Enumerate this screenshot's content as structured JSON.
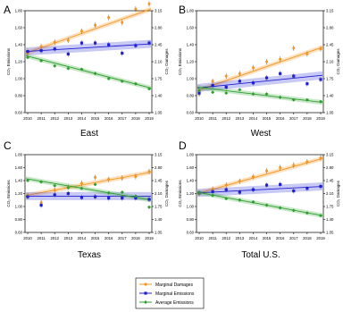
{
  "chart_data": {
    "type": "scatter",
    "years": [
      2010,
      2011,
      2012,
      2013,
      2014,
      2015,
      2016,
      2017,
      2018,
      2019
    ],
    "axes": {
      "left_label": "CO₂ Emissions",
      "right_label": "CO₂ Damages",
      "left_ylim": [
        0.6,
        1.8
      ],
      "left_ticks": [
        "0.60",
        "0.80",
        "1.00",
        "1.20",
        "1.40",
        "1.60",
        "1.80"
      ],
      "right_ylim": [
        0.6,
        3.6
      ],
      "right_ticks": [
        "1.05",
        "1.40",
        "1.75",
        "2.10",
        "2.45",
        "2.80",
        "3.15"
      ]
    },
    "legend": {
      "placement": "bottom-center",
      "entries": [
        {
          "name": "Marginal Damages",
          "color": "#f7941d"
        },
        {
          "name": "Marginal Emissions",
          "color": "#1f1fd6"
        },
        {
          "name": "Average Emissions",
          "color": "#2ca02c"
        }
      ]
    },
    "panels": [
      {
        "letter": "A",
        "title": "East",
        "series": {
          "marginal_damages": [
            1.3,
            1.38,
            1.43,
            1.45,
            1.56,
            1.63,
            1.72,
            1.66,
            1.82,
            1.88
          ],
          "marginal_emissions": [
            1.32,
            1.33,
            1.35,
            1.29,
            1.42,
            1.42,
            1.4,
            1.3,
            1.39,
            1.42
          ],
          "average_emissions": [
            1.25,
            1.21,
            1.15,
            1.12,
            1.11,
            1.06,
            1.0,
            0.97,
            0.94,
            0.88
          ]
        },
        "fits": {
          "marginal_damages": [
            1.3,
            1.82
          ],
          "marginal_emissions": [
            1.32,
            1.41
          ],
          "average_emissions": [
            1.27,
            0.89
          ]
        }
      },
      {
        "letter": "B",
        "title": "West",
        "series": {
          "marginal_damages": [
            0.82,
            0.97,
            1.03,
            1.06,
            1.13,
            1.2,
            1.23,
            1.36,
            1.29,
            1.35
          ],
          "marginal_emissions": [
            0.83,
            0.92,
            0.9,
            0.97,
            0.95,
            1.01,
            1.06,
            1.03,
            0.94,
            0.99
          ],
          "average_emissions": [
            0.86,
            0.84,
            0.83,
            0.87,
            0.82,
            0.82,
            0.78,
            0.75,
            0.75,
            0.73
          ]
        },
        "fits": {
          "marginal_damages": [
            0.86,
            1.37
          ],
          "marginal_emissions": [
            0.89,
            1.04
          ],
          "average_emissions": [
            0.9,
            0.72
          ]
        }
      },
      {
        "letter": "C",
        "title": "Texas",
        "series": {
          "marginal_damages": [
            1.17,
            1.06,
            1.25,
            1.3,
            1.36,
            1.45,
            1.42,
            1.44,
            1.46,
            1.54
          ],
          "marginal_emissions": [
            1.15,
            1.02,
            1.18,
            1.2,
            1.14,
            1.15,
            1.13,
            1.13,
            1.13,
            1.11
          ],
          "average_emissions": [
            1.4,
            1.38,
            1.32,
            1.29,
            1.28,
            1.34,
            1.21,
            1.22,
            1.16,
            0.99
          ]
        },
        "fits": {
          "marginal_damages": [
            1.17,
            1.53
          ],
          "marginal_emissions": [
            1.16,
            1.16
          ],
          "average_emissions": [
            1.43,
            1.1
          ]
        }
      },
      {
        "letter": "D",
        "title": "Total U.S.",
        "series": {
          "marginal_damages": [
            1.2,
            1.27,
            1.33,
            1.39,
            1.46,
            1.55,
            1.6,
            1.64,
            1.69,
            1.75
          ],
          "marginal_emissions": [
            1.21,
            1.23,
            1.26,
            1.22,
            1.26,
            1.33,
            1.34,
            1.24,
            1.28,
            1.31
          ],
          "average_emissions": [
            1.21,
            1.17,
            1.12,
            1.1,
            1.07,
            1.02,
            0.98,
            0.94,
            0.9,
            0.86
          ]
        },
        "fits": {
          "marginal_damages": [
            1.2,
            1.74
          ],
          "marginal_emissions": [
            1.21,
            1.31
          ],
          "average_emissions": [
            1.22,
            0.86
          ]
        }
      }
    ]
  }
}
